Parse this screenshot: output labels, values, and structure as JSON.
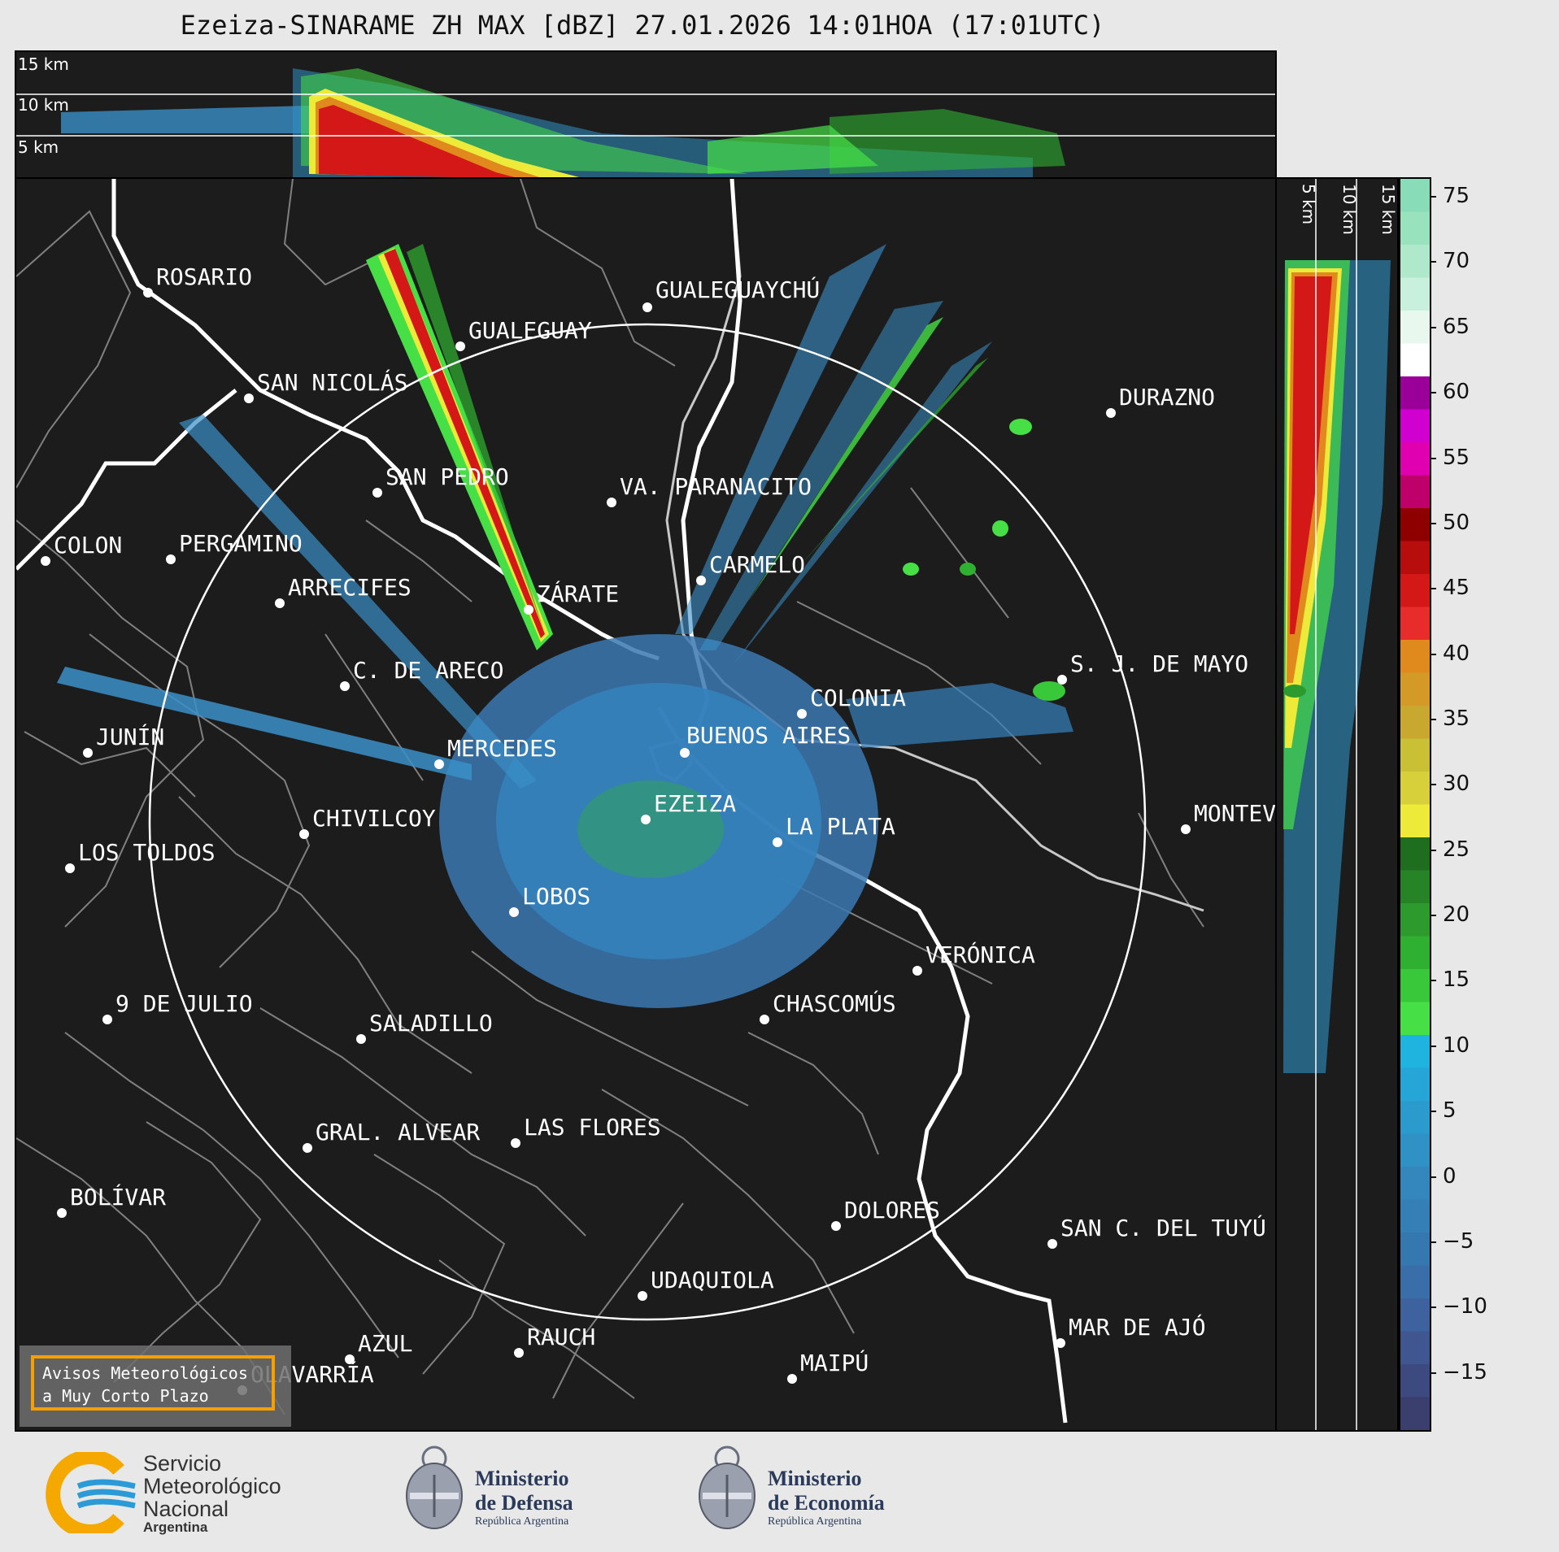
{
  "title": "Ezeiza-SINARAME ZH MAX [dBZ] 27.01.2026 14:01HOA (17:01UTC)",
  "height_labels": [
    "15 km",
    "10 km",
    "5 km"
  ],
  "cities": [
    {
      "name": "ROSARIO"
    },
    {
      "name": "GUALEGUAYCHÚ"
    },
    {
      "name": "GUALEGUAY"
    },
    {
      "name": "SAN NICOLÁS"
    },
    {
      "name": "DURAZNO"
    },
    {
      "name": "SAN PEDRO"
    },
    {
      "name": "VA. PARANACITO"
    },
    {
      "name": "COLON"
    },
    {
      "name": "PERGAMINO"
    },
    {
      "name": "CARMELO"
    },
    {
      "name": "ARRECIFES"
    },
    {
      "name": "ZÁRATE"
    },
    {
      "name": "C. DE ARECO"
    },
    {
      "name": "S. J. DE MAYO"
    },
    {
      "name": "COLONIA"
    },
    {
      "name": "JUNÍN"
    },
    {
      "name": "BUENOS AIRES"
    },
    {
      "name": "MERCEDES"
    },
    {
      "name": "MONTEVIDEO"
    },
    {
      "name": "EZEIZA"
    },
    {
      "name": "CHIVILCOY"
    },
    {
      "name": "LA PLATA"
    },
    {
      "name": "LOS TOLDOS"
    },
    {
      "name": "LOBOS"
    },
    {
      "name": "VERÓNICA"
    },
    {
      "name": "9 DE JULIO"
    },
    {
      "name": "CHASCOMÚS"
    },
    {
      "name": "SALADILLO"
    },
    {
      "name": "GRAL. ALVEAR"
    },
    {
      "name": "LAS FLORES"
    },
    {
      "name": "BOLÍVAR"
    },
    {
      "name": "DOLORES"
    },
    {
      "name": "SAN C. DEL TUYÚ"
    },
    {
      "name": "UDAQUIOLA"
    },
    {
      "name": "MAR DE AJÓ"
    },
    {
      "name": "AZUL"
    },
    {
      "name": "RAUCH"
    },
    {
      "name": "MAIPÚ"
    },
    {
      "name": "OLAVARRÍA"
    }
  ],
  "colorbar": {
    "ticks": [
      "75",
      "70",
      "65",
      "60",
      "55",
      "50",
      "45",
      "40",
      "35",
      "30",
      "25",
      "20",
      "15",
      "10",
      "5",
      "0",
      "−5",
      "−10",
      "−15"
    ],
    "colors": [
      "#3b3f6e",
      "#3d4a80",
      "#3f5690",
      "#3d629e",
      "#3a6ea8",
      "#3578b0",
      "#347fb6",
      "#3387bd",
      "#2f91c4",
      "#2a9bcc",
      "#25a6d6",
      "#1fb3e0",
      "#46e046",
      "#38c83a",
      "#2fb031",
      "#2c9a2c",
      "#268426",
      "#1f6e1f",
      "#eeea3a",
      "#d8d03a",
      "#c9c035",
      "#c8a82f",
      "#d49a27",
      "#e08a1e",
      "#e82b2b",
      "#d41818",
      "#b80d0d",
      "#8e0000",
      "#c0006a",
      "#e000b0",
      "#d000d0",
      "#9a0099",
      "#ffffff",
      "#e8f8ee",
      "#c8f0dc",
      "#b0e8cc",
      "#98e2be",
      "#88dcb8"
    ]
  },
  "aviso": {
    "line1": "Avisos Meteorológicos",
    "line2": "a Muy Corto Plazo"
  },
  "footer": {
    "smn_line1": "Servicio",
    "smn_line2": "Meteorológico",
    "smn_line3": "Nacional",
    "smn_line4": "Argentina",
    "def_line1": "Ministerio",
    "def_line2": "de Defensa",
    "def_sub": "República Argentina",
    "eco_line1": "Ministerio",
    "eco_line2": "de Economía",
    "eco_sub": "República Argentina"
  },
  "colors": {
    "background": "#1c1c1c",
    "aviso_border": "#f5a000"
  }
}
